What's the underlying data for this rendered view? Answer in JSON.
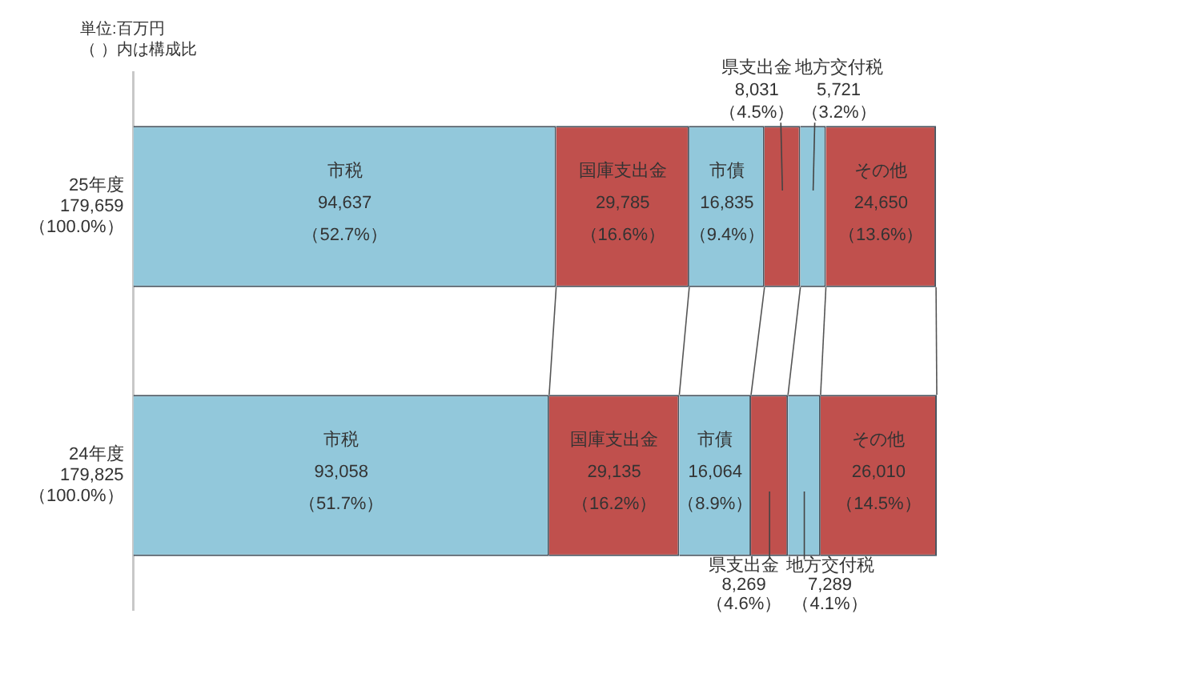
{
  "chart_data": {
    "type": "bar",
    "orientation": "horizontal",
    "stacked": true,
    "categories": [
      "25年度",
      "24年度"
    ],
    "totals": [
      "179,659\n（100.0%）",
      "179,825\n（100.0%）"
    ],
    "xlim": [
      0,
      179825
    ],
    "tick_labels": "y",
    "legend": false,
    "annotations": [
      "単位:百万円",
      "（ ）内は構成比"
    ],
    "series": [
      {
        "name": "市税",
        "color": "#92c8db",
        "values": [
          94637,
          93058
        ],
        "value_labels": [
          "94,637\n（52.7%）",
          "93,058\n（51.7%）"
        ]
      },
      {
        "name": "国庫支出金",
        "color": "#c0504d",
        "values": [
          29785,
          29135
        ],
        "value_labels": [
          "29,785\n（16.6%）",
          "29,135\n（16.2%）"
        ]
      },
      {
        "name": "市債",
        "color": "#92c8db",
        "values": [
          16835,
          16064
        ],
        "value_labels": [
          "16,835\n（9.4%）",
          "16,064\n（8.9%）"
        ]
      },
      {
        "name": "県支出金",
        "color": "#c0504d",
        "values": [
          8031,
          8269
        ],
        "value_labels": [
          "8,031\n（4.5%）",
          "8,269\n（4.6%）"
        ]
      },
      {
        "name": "地方交付税",
        "color": "#92c8db",
        "values": [
          5721,
          7289
        ],
        "value_labels": [
          "5,721\n（3.2%）",
          "7,289\n（4.1%）"
        ]
      },
      {
        "name": "その他",
        "color": "#c0504d",
        "values": [
          24650,
          26010
        ],
        "value_labels": [
          "24,650\n（13.6%）",
          "26,010\n（14.5%）"
        ]
      }
    ]
  }
}
